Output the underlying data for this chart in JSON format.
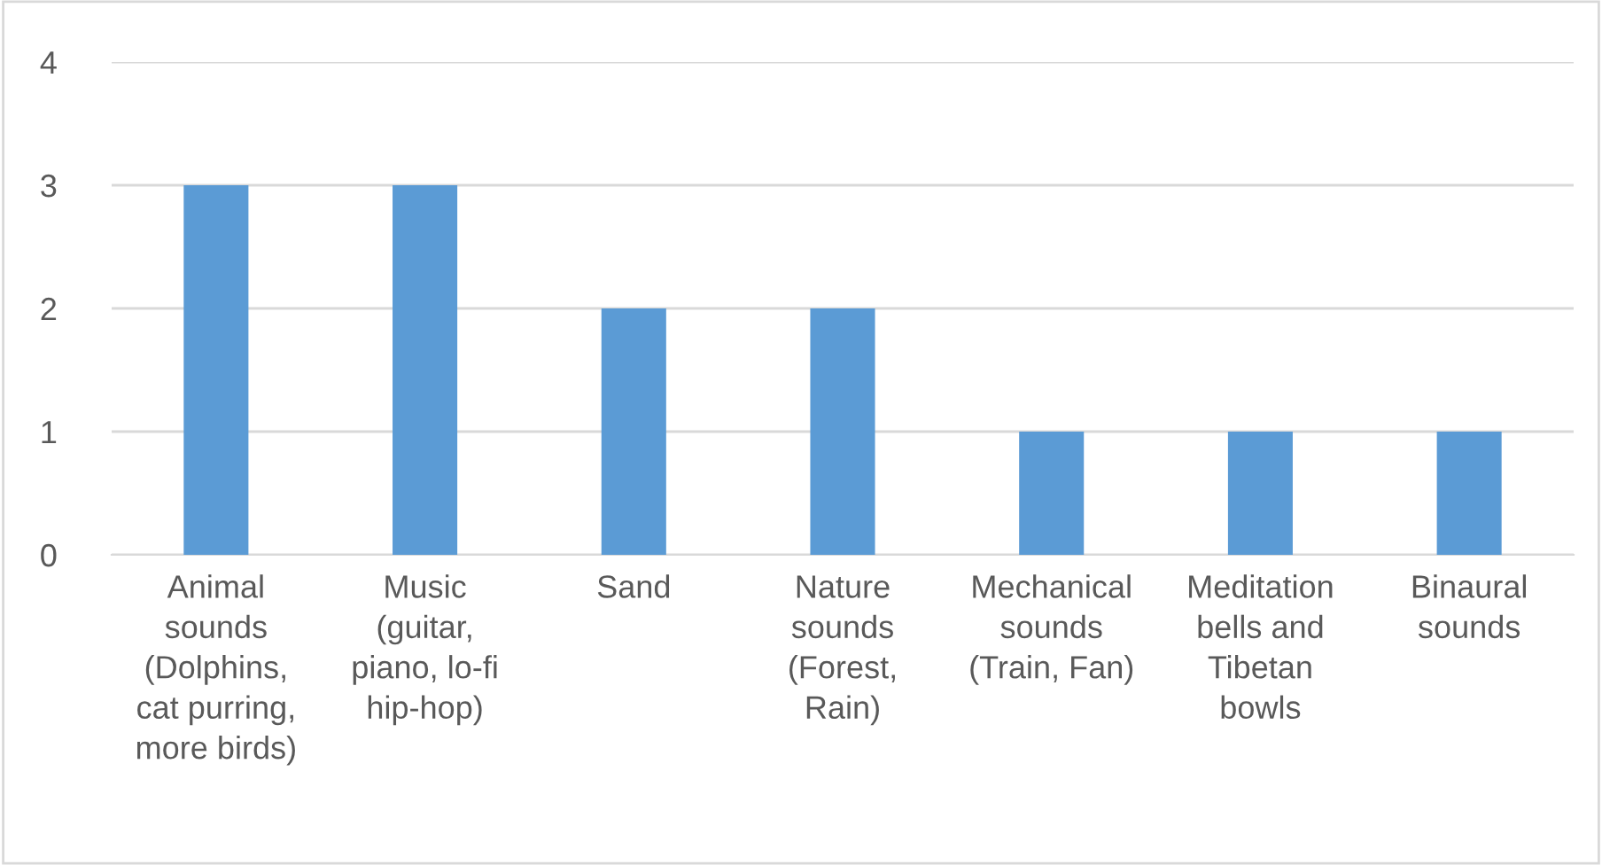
{
  "chart_data": {
    "type": "bar",
    "categories": [
      "Animal\nsounds\n(Dolphins,\ncat purring,\nmore birds)",
      "Music\n(guitar,\npiano, lo-fi\nhip-hop)",
      "Sand",
      "Nature\nsounds\n(Forest,\nRain)",
      "Mechanical\nsounds\n(Train, Fan)",
      "Meditation\nbells and\nTibetan\nbowls",
      "Binaural\nsounds"
    ],
    "values": [
      3,
      3,
      2,
      2,
      1,
      1,
      1
    ],
    "color": "#5b9bd5",
    "ylim": [
      0,
      4
    ],
    "yticks": [
      0,
      1,
      2,
      3,
      4
    ],
    "grid": "y",
    "legend": false
  }
}
